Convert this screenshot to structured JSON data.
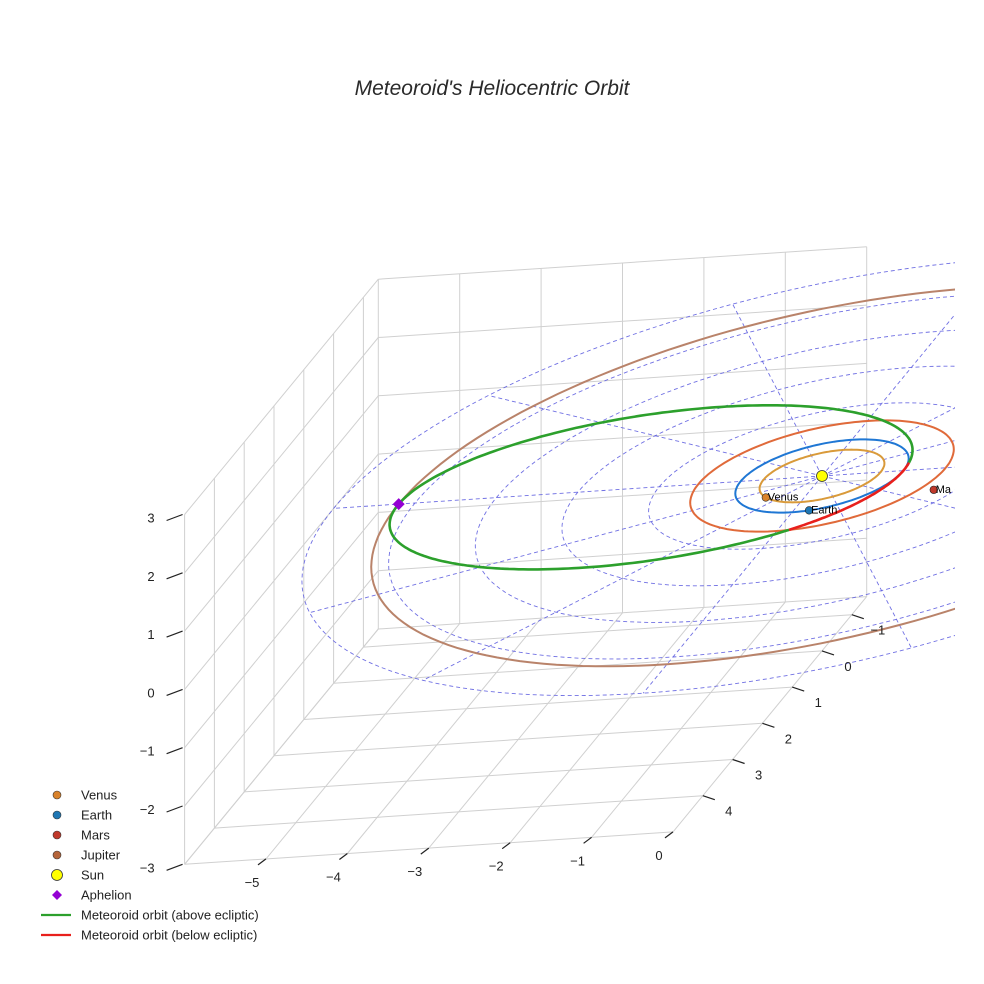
{
  "chart_data": {
    "type": "line",
    "title": "Meteoroid's Heliocentric Orbit",
    "xlabel": "",
    "ylabel": "",
    "zlabel": "",
    "xlim": [
      -6,
      0
    ],
    "ylim": [
      -1.5,
      5
    ],
    "zlim": [
      -3,
      3
    ],
    "x_ticks": [
      "−5",
      "−4",
      "−3",
      "−2",
      "−1",
      "0"
    ],
    "y_ticks": [
      "−1",
      "0",
      "1",
      "2",
      "3",
      "4"
    ],
    "z_ticks": [
      "3",
      "2",
      "1",
      "0",
      "−1",
      "−2",
      "−3"
    ],
    "orbits": [
      {
        "name": "Venus orbit",
        "radius_au": 0.72,
        "color": "#d99a3a"
      },
      {
        "name": "Earth orbit",
        "radius_au": 1.0,
        "color": "#1f77d4"
      },
      {
        "name": "Mars orbit",
        "radius_au": 1.52,
        "color": "#e06a3a"
      },
      {
        "name": "Jupiter orbit",
        "radius_au": 5.2,
        "color": "#b9836a"
      }
    ],
    "bodies": [
      {
        "name": "Venus",
        "label": "Venus",
        "color": "#d9822b"
      },
      {
        "name": "Earth",
        "label": "Earth",
        "color": "#1f77b4"
      },
      {
        "name": "Mars",
        "label": "Ma",
        "color": "#c0392b"
      },
      {
        "name": "Sun",
        "label": "",
        "color": "#ffff00"
      },
      {
        "name": "Aphelion",
        "label": "",
        "color": "#9400d3"
      }
    ],
    "meteoroid_orbit": {
      "perihelion_au": 1.0,
      "aphelion_au": 5.2,
      "above_color": "#2ca02c",
      "below_color": "#e8201c"
    },
    "grid": true,
    "ecliptic_grid_color": "#6060e0",
    "legend": {
      "placement": "bottom-left",
      "entries": [
        {
          "label": "Venus",
          "marker": "dot",
          "color": "#d9822b"
        },
        {
          "label": "Earth",
          "marker": "dot",
          "color": "#1f77b4"
        },
        {
          "label": "Mars",
          "marker": "dot",
          "color": "#c0392b"
        },
        {
          "label": "Jupiter",
          "marker": "dot",
          "color": "#b5653a"
        },
        {
          "label": "Sun",
          "marker": "sun",
          "color": "#ffff00"
        },
        {
          "label": "Aphelion",
          "marker": "diamond",
          "color": "#9400d3"
        },
        {
          "label": "Meteoroid orbit (above ecliptic)",
          "marker": "line",
          "color": "#2ca02c"
        },
        {
          "label": "Meteoroid orbit (below ecliptic)",
          "marker": "line",
          "color": "#e8201c"
        }
      ]
    }
  }
}
